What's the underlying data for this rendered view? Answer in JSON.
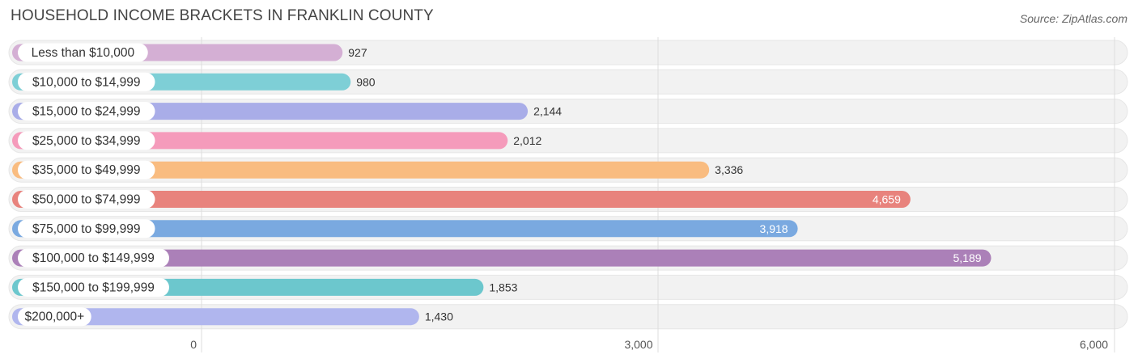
{
  "header": {
    "title": "HOUSEHOLD INCOME BRACKETS IN FRANKLIN COUNTY",
    "source": "Source: ZipAtlas.com"
  },
  "chart_data": {
    "type": "bar",
    "orientation": "horizontal",
    "title": "HOUSEHOLD INCOME BRACKETS IN FRANKLIN COUNTY",
    "categories": [
      "Less than $10,000",
      "$10,000 to $14,999",
      "$15,000 to $24,999",
      "$25,000 to $34,999",
      "$35,000 to $49,999",
      "$50,000 to $74,999",
      "$75,000 to $99,999",
      "$100,000 to $149,999",
      "$150,000 to $199,999",
      "$200,000+"
    ],
    "values": [
      927,
      980,
      2144,
      2012,
      3336,
      4659,
      3918,
      5189,
      1853,
      1430
    ],
    "value_labels": [
      "927",
      "980",
      "2,144",
      "2,012",
      "3,336",
      "4,659",
      "3,918",
      "5,189",
      "1,853",
      "1,430"
    ],
    "colors": [
      "#d4afd4",
      "#7ecfd6",
      "#a9ade8",
      "#f59bbb",
      "#f9bc80",
      "#e8837d",
      "#7aa9e0",
      "#ab80b8",
      "#6cc7cd",
      "#b0b6ee"
    ],
    "xlim": [
      0,
      6000
    ],
    "xticks": [
      0,
      3000,
      6000
    ],
    "xtick_labels": [
      "0",
      "3,000",
      "6,000"
    ],
    "grid": true,
    "legend": "none"
  }
}
